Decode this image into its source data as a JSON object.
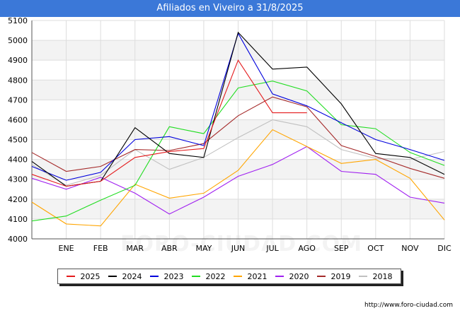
{
  "title": "Afiliados en Viveiro a 31/8/2025",
  "source_text": "http://www.foro-ciudad.com",
  "watermark": "FORO-CIUDAD.COM",
  "chart_data": {
    "type": "line",
    "title": "Afiliados en Viveiro a 31/8/2025",
    "xlabel": "",
    "ylabel": "",
    "categories": [
      "",
      "ENE",
      "FEB",
      "MAR",
      "ABR",
      "MAY",
      "JUN",
      "JUL",
      "AGO",
      "SEP",
      "OCT",
      "NOV",
      "DIC"
    ],
    "yticks": [
      4000,
      4100,
      4200,
      4300,
      4400,
      4500,
      4600,
      4700,
      4800,
      4900,
      5000,
      5100
    ],
    "ylim": [
      4000,
      5100
    ],
    "grid": true,
    "legend_position": "bottom",
    "series": [
      {
        "name": "2025",
        "color": "#e41a1c",
        "values": [
          4325,
          4265,
          4290,
          4410,
          4440,
          4455,
          4900,
          4635,
          4635,
          null,
          null,
          null,
          null
        ]
      },
      {
        "name": "2024",
        "color": "#000000",
        "values": [
          4390,
          4265,
          4290,
          4560,
          4430,
          4410,
          5040,
          4855,
          4865,
          4680,
          4430,
          4410,
          4325
        ]
      },
      {
        "name": "2023",
        "color": "#0000dd",
        "values": [
          4365,
          4295,
          4335,
          4500,
          4515,
          4470,
          5035,
          4730,
          4670,
          4585,
          4500,
          4450,
          4395
        ]
      },
      {
        "name": "2022",
        "color": "#22dd22",
        "values": [
          4090,
          4115,
          4195,
          4270,
          4565,
          4530,
          4760,
          4795,
          4745,
          4575,
          4555,
          4435,
          4370
        ]
      },
      {
        "name": "2021",
        "color": "#ffa500",
        "values": [
          4185,
          4075,
          4065,
          4275,
          4205,
          4230,
          4345,
          4550,
          4465,
          4380,
          4400,
          4305,
          4095
        ]
      },
      {
        "name": "2020",
        "color": "#a020f0",
        "values": [
          4305,
          4250,
          4310,
          4230,
          4125,
          4210,
          4315,
          4375,
          4465,
          4340,
          4325,
          4210,
          4180
        ]
      },
      {
        "name": "2019",
        "color": "#a52a2a",
        "values": [
          4435,
          4340,
          4365,
          4450,
          4445,
          4480,
          4620,
          4715,
          4665,
          4470,
          4415,
          4355,
          4305
        ]
      },
      {
        "name": "2018",
        "color": "#c0c0c0",
        "values": [
          4375,
          4270,
          4320,
          4450,
          4350,
          4410,
          4510,
          4600,
          4565,
          4450,
          4405,
          4400,
          4440
        ]
      }
    ]
  }
}
